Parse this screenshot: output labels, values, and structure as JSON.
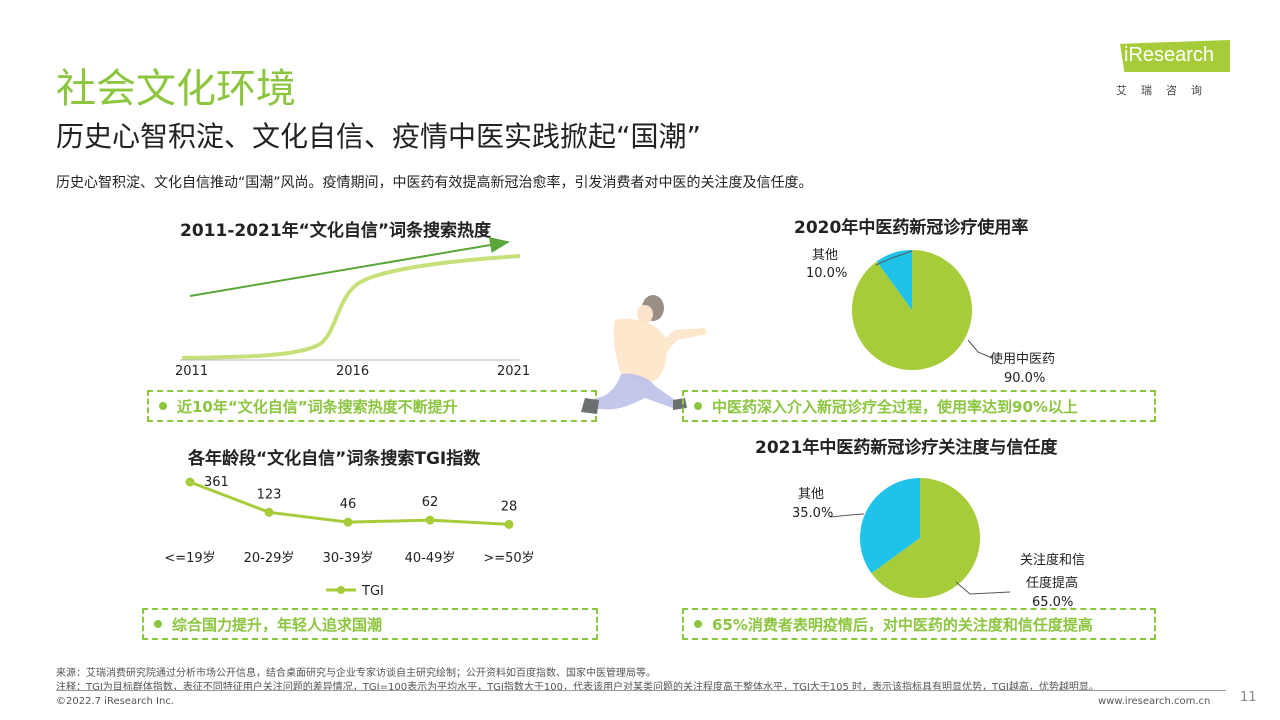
{
  "header": {
    "title": "社会文化环境",
    "subtitle": "历史心智积淀、文化自信、疫情中医实践掀起“国潮”",
    "intro": "历史心智积淀、文化自信推动“国潮”风尚。疫情期间，中医药有效提高新冠治愈率，引发消费者对中医的关注度及信任度。"
  },
  "logo": {
    "brand": "iResearch",
    "subtitle": "艾瑞咨询"
  },
  "chart_data": [
    {
      "type": "line",
      "title": "2011-2021年“文化自信”词条搜索热度",
      "x": [
        2011,
        2016,
        2021
      ],
      "tick_labels": [
        "2011",
        "2016",
        "2021"
      ],
      "callout": "近10年“文化自信”词条搜索热度不断提升"
    },
    {
      "type": "pie",
      "title": "2020年中医药新冠诊疗使用率",
      "slices": [
        {
          "name": "使用中医药",
          "value": 90.0,
          "label": "90.0%",
          "color": "#a6cc3a"
        },
        {
          "name": "其他",
          "value": 10.0,
          "label": "10.0%",
          "color": "#1fc3ea"
        }
      ],
      "callout": "中医药深入介入新冠诊疗全过程，使用率达到90%以上"
    },
    {
      "type": "line",
      "title": "各年龄段“文化自信”词条搜索TGI指数",
      "categories": [
        "<=19岁",
        "20-29岁",
        "30-39岁",
        "40-49岁",
        ">=50岁"
      ],
      "series": [
        {
          "name": "TGI",
          "values": [
            361,
            123,
            46,
            62,
            28
          ],
          "color": "#a6cc3a"
        }
      ],
      "callout": "综合国力提升，年轻人追求国潮"
    },
    {
      "type": "pie",
      "title": "2021年中医药新冠诊疗关注度与信任度",
      "slices": [
        {
          "name": "关注度和信任度提高",
          "name_lines": [
            "关注度和信",
            "任度提高"
          ],
          "value": 65.0,
          "label": "65.0%",
          "color": "#a6cc3a"
        },
        {
          "name": "其他",
          "value": 35.0,
          "label": "35.0%",
          "color": "#1fc3ea"
        }
      ],
      "callout": "65%消费者表明疫情后，对中医药的关注度和信任度提高"
    }
  ],
  "footer": {
    "source": "来源：艾瑞消费研究院通过分析市场公开信息，结合桌面研究与企业专家访谈自主研究绘制；公开资料如百度指数、国家中医管理局等。",
    "note": "注释：TGI为目标群体指数，表征不同特征用户关注问题的差异情况，TGI=100表示为平均水平，TGI指数大于100，代表该用户对某类问题的关注程度高于整体水平，TGI大于105 时，表示该指标具有明显优势，TGI越高，优势越明显。",
    "copyright": "©2022.7 iResearch Inc.",
    "url": "www.iresearch.com.cn",
    "page": "11"
  }
}
